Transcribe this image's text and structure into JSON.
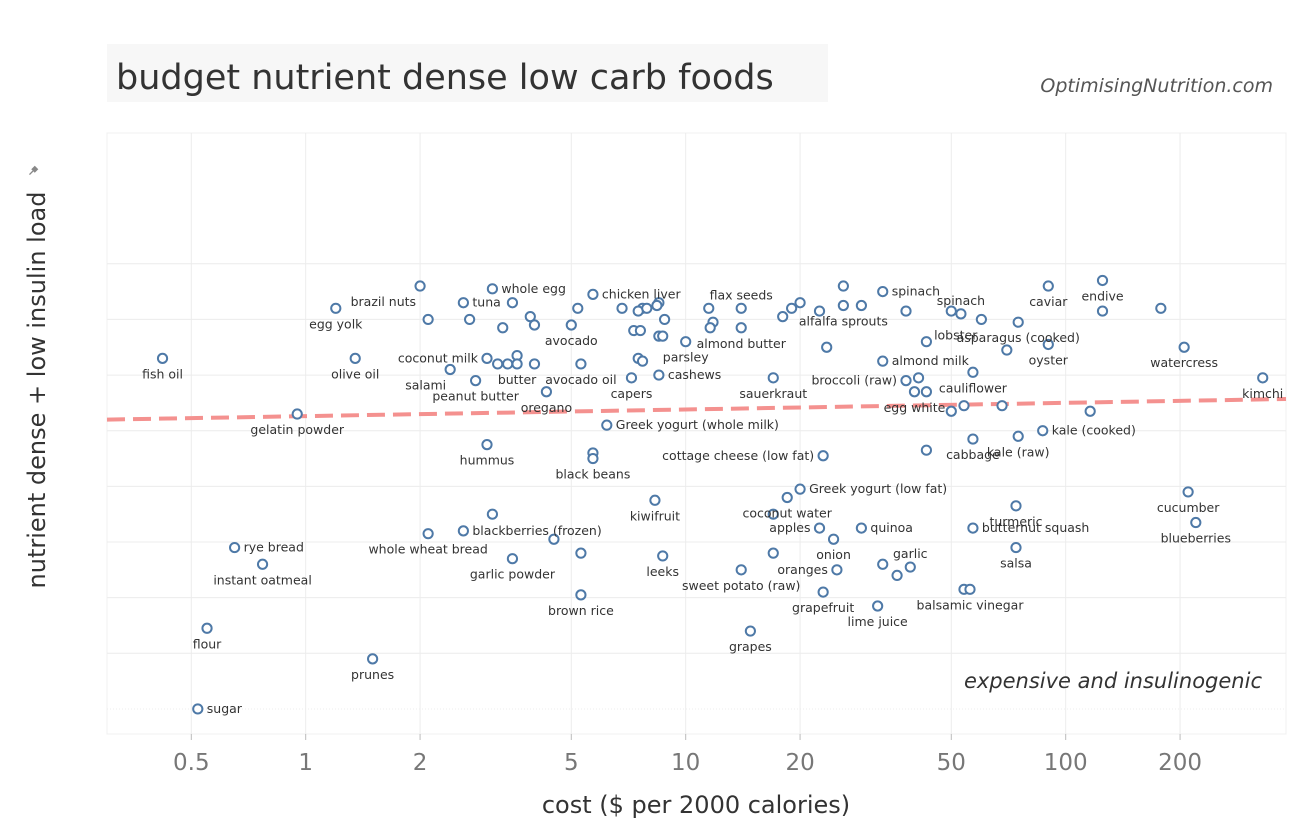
{
  "chart_data": {
    "type": "scatter",
    "title": "budget nutrient dense low carb foods",
    "watermark": "OptimisingNutrition.com",
    "corner_note": "expensive and insulinogenic",
    "xlabel": "cost ($ per 2000 calories)",
    "ylabel": "nutrient dense + low insulin load",
    "x_scale": "log",
    "xlim": [
      0.3,
      380
    ],
    "ylim": [
      -0.45,
      10.35
    ],
    "x_ticks": [
      {
        "value": 0.5,
        "label": "0.5"
      },
      {
        "value": 1,
        "label": "1"
      },
      {
        "value": 2,
        "label": "2"
      },
      {
        "value": 5,
        "label": "5"
      },
      {
        "value": 10,
        "label": "10"
      },
      {
        "value": 20,
        "label": "20"
      },
      {
        "value": 50,
        "label": "50"
      },
      {
        "value": 100,
        "label": "100"
      },
      {
        "value": 200,
        "label": "200"
      }
    ],
    "trendline": {
      "x": [
        0.3,
        380
      ],
      "y": [
        5.2,
        5.57
      ]
    },
    "labeled_points": [
      {
        "label": "fish oil",
        "x": 0.42,
        "y": 6.3,
        "pos": "below"
      },
      {
        "label": "egg yolk",
        "x": 1.2,
        "y": 7.2,
        "pos": "below"
      },
      {
        "label": "olive oil",
        "x": 1.35,
        "y": 6.3,
        "pos": "below"
      },
      {
        "label": "brazil nuts",
        "x": 2.0,
        "y": 7.6,
        "pos": "belowleft"
      },
      {
        "label": "coconut milk",
        "x": 3.0,
        "y": 6.3,
        "pos": "left"
      },
      {
        "label": "salami",
        "x": 2.4,
        "y": 6.1,
        "pos": "belowleft"
      },
      {
        "label": "peanut butter",
        "x": 2.8,
        "y": 5.9,
        "pos": "below"
      },
      {
        "label": "butter",
        "x": 3.6,
        "y": 6.2,
        "pos": "below"
      },
      {
        "label": "tuna",
        "x": 2.6,
        "y": 7.3,
        "pos": "right"
      },
      {
        "label": "whole egg",
        "x": 3.1,
        "y": 7.55,
        "pos": "right"
      },
      {
        "label": "avocado",
        "x": 5.0,
        "y": 6.9,
        "pos": "below"
      },
      {
        "label": "avocado oil",
        "x": 5.3,
        "y": 6.2,
        "pos": "below"
      },
      {
        "label": "oregano",
        "x": 4.3,
        "y": 5.7,
        "pos": "below"
      },
      {
        "label": "chicken liver",
        "x": 5.7,
        "y": 7.45,
        "pos": "right"
      },
      {
        "label": "capers",
        "x": 7.2,
        "y": 5.95,
        "pos": "below"
      },
      {
        "label": "cashews",
        "x": 8.5,
        "y": 6.0,
        "pos": "right"
      },
      {
        "label": "parsley",
        "x": 10.0,
        "y": 6.6,
        "pos": "below"
      },
      {
        "label": "flax seeds",
        "x": 14.0,
        "y": 7.2,
        "pos": "above"
      },
      {
        "label": "almond butter",
        "x": 14.0,
        "y": 6.85,
        "pos": "below"
      },
      {
        "label": "sauerkraut",
        "x": 17.0,
        "y": 5.95,
        "pos": "below"
      },
      {
        "label": "spinach",
        "x": 33.0,
        "y": 7.5,
        "pos": "right"
      },
      {
        "label": "alfalfa sprouts",
        "x": 26.0,
        "y": 7.25,
        "pos": "below"
      },
      {
        "label": "spinach",
        "x": 53.0,
        "y": 7.1,
        "pos": "above"
      },
      {
        "label": "almond milk",
        "x": 33.0,
        "y": 6.25,
        "pos": "right"
      },
      {
        "label": "broccoli (raw)",
        "x": 38.0,
        "y": 5.9,
        "pos": "left"
      },
      {
        "label": "cauliflower",
        "x": 57.0,
        "y": 6.05,
        "pos": "below"
      },
      {
        "label": "egg white",
        "x": 40.0,
        "y": 5.7,
        "pos": "below"
      },
      {
        "label": "lobster",
        "x": 60.0,
        "y": 7.0,
        "pos": "belowleft"
      },
      {
        "label": "caviar",
        "x": 90.0,
        "y": 7.6,
        "pos": "below"
      },
      {
        "label": "endive",
        "x": 125.0,
        "y": 7.7,
        "pos": "below"
      },
      {
        "label": "asparagus (cooked)",
        "x": 75.0,
        "y": 6.95,
        "pos": "below"
      },
      {
        "label": "oyster",
        "x": 90.0,
        "y": 6.55,
        "pos": "below"
      },
      {
        "label": "watercress",
        "x": 205.0,
        "y": 6.5,
        "pos": "below"
      },
      {
        "label": "kimchi",
        "x": 330.0,
        "y": 5.95,
        "pos": "below"
      },
      {
        "label": "gelatin powder",
        "x": 0.95,
        "y": 5.3,
        "pos": "below"
      },
      {
        "label": "Greek yogurt (whole milk)",
        "x": 6.2,
        "y": 5.1,
        "pos": "right"
      },
      {
        "label": "hummus",
        "x": 3.0,
        "y": 4.75,
        "pos": "below"
      },
      {
        "label": "cottage cheese (low fat)",
        "x": 23.0,
        "y": 4.55,
        "pos": "left"
      },
      {
        "label": "cabbage",
        "x": 57.0,
        "y": 4.85,
        "pos": "below"
      },
      {
        "label": "kale (cooked)",
        "x": 87.0,
        "y": 5.0,
        "pos": "right"
      },
      {
        "label": "kale (raw)",
        "x": 75.0,
        "y": 4.9,
        "pos": "below"
      },
      {
        "label": "black beans",
        "x": 5.7,
        "y": 4.5,
        "pos": "below"
      },
      {
        "label": "Greek yogurt (low fat)",
        "x": 20.0,
        "y": 3.95,
        "pos": "right"
      },
      {
        "label": "kiwifruit",
        "x": 8.3,
        "y": 3.75,
        "pos": "below"
      },
      {
        "label": "coconut water",
        "x": 18.5,
        "y": 3.8,
        "pos": "below"
      },
      {
        "label": "turmeric",
        "x": 74.0,
        "y": 3.65,
        "pos": "below"
      },
      {
        "label": "cucumber",
        "x": 210.0,
        "y": 3.9,
        "pos": "below"
      },
      {
        "label": "blackberries (frozen)",
        "x": 2.6,
        "y": 3.2,
        "pos": "right"
      },
      {
        "label": "whole wheat bread",
        "x": 2.1,
        "y": 3.15,
        "pos": "below"
      },
      {
        "label": "apples",
        "x": 22.5,
        "y": 3.25,
        "pos": "left"
      },
      {
        "label": "quinoa",
        "x": 29.0,
        "y": 3.25,
        "pos": "right"
      },
      {
        "label": "butternut squash",
        "x": 57.0,
        "y": 3.25,
        "pos": "right"
      },
      {
        "label": "blueberries",
        "x": 220.0,
        "y": 3.35,
        "pos": "below"
      },
      {
        "label": "rye bread",
        "x": 0.65,
        "y": 2.9,
        "pos": "right"
      },
      {
        "label": "onion",
        "x": 24.5,
        "y": 3.05,
        "pos": "below"
      },
      {
        "label": "salsa",
        "x": 74.0,
        "y": 2.9,
        "pos": "below"
      },
      {
        "label": "garlic powder",
        "x": 3.5,
        "y": 2.7,
        "pos": "below"
      },
      {
        "label": "leeks",
        "x": 8.7,
        "y": 2.75,
        "pos": "below"
      },
      {
        "label": "garlic",
        "x": 39.0,
        "y": 2.55,
        "pos": "above"
      },
      {
        "label": "instant oatmeal",
        "x": 0.77,
        "y": 2.6,
        "pos": "below"
      },
      {
        "label": "oranges",
        "x": 25.0,
        "y": 2.5,
        "pos": "left"
      },
      {
        "label": "sweet potato (raw)",
        "x": 14.0,
        "y": 2.5,
        "pos": "below"
      },
      {
        "label": "grapefruit",
        "x": 23.0,
        "y": 2.1,
        "pos": "below"
      },
      {
        "label": "balsamic vinegar",
        "x": 56.0,
        "y": 2.15,
        "pos": "below"
      },
      {
        "label": "lime juice",
        "x": 32.0,
        "y": 1.85,
        "pos": "below"
      },
      {
        "label": "brown rice",
        "x": 5.3,
        "y": 2.05,
        "pos": "below"
      },
      {
        "label": "flour",
        "x": 0.55,
        "y": 1.45,
        "pos": "below"
      },
      {
        "label": "grapes",
        "x": 14.8,
        "y": 1.4,
        "pos": "below"
      },
      {
        "label": "prunes",
        "x": 1.5,
        "y": 0.9,
        "pos": "below"
      },
      {
        "label": "sugar",
        "x": 0.52,
        "y": 0.0,
        "pos": "right"
      }
    ],
    "unlabeled_points": [
      {
        "x": 3.5,
        "y": 7.3
      },
      {
        "x": 2.1,
        "y": 7.0
      },
      {
        "x": 2.7,
        "y": 7.0
      },
      {
        "x": 3.3,
        "y": 6.85
      },
      {
        "x": 3.9,
        "y": 7.05
      },
      {
        "x": 4.0,
        "y": 6.9
      },
      {
        "x": 5.2,
        "y": 7.2
      },
      {
        "x": 6.8,
        "y": 7.2
      },
      {
        "x": 7.7,
        "y": 7.2
      },
      {
        "x": 8.5,
        "y": 7.3
      },
      {
        "x": 8.4,
        "y": 7.25
      },
      {
        "x": 7.5,
        "y": 7.15
      },
      {
        "x": 8.8,
        "y": 7.0
      },
      {
        "x": 7.3,
        "y": 6.8
      },
      {
        "x": 7.6,
        "y": 6.8
      },
      {
        "x": 7.9,
        "y": 7.2
      },
      {
        "x": 8.5,
        "y": 6.7
      },
      {
        "x": 8.7,
        "y": 6.7
      },
      {
        "x": 11.5,
        "y": 7.2
      },
      {
        "x": 11.8,
        "y": 6.95
      },
      {
        "x": 11.6,
        "y": 6.85
      },
      {
        "x": 3.2,
        "y": 6.2
      },
      {
        "x": 3.6,
        "y": 6.35
      },
      {
        "x": 4.0,
        "y": 6.2
      },
      {
        "x": 3.4,
        "y": 6.2
      },
      {
        "x": 7.5,
        "y": 6.3
      },
      {
        "x": 7.7,
        "y": 6.25
      },
      {
        "x": 18.0,
        "y": 7.05
      },
      {
        "x": 19.0,
        "y": 7.2
      },
      {
        "x": 20.0,
        "y": 7.3
      },
      {
        "x": 22.5,
        "y": 7.15
      },
      {
        "x": 26.0,
        "y": 7.6
      },
      {
        "x": 29.0,
        "y": 7.25
      },
      {
        "x": 38.0,
        "y": 7.15
      },
      {
        "x": 50.0,
        "y": 7.15
      },
      {
        "x": 23.5,
        "y": 6.5
      },
      {
        "x": 43.0,
        "y": 6.6
      },
      {
        "x": 41.0,
        "y": 5.95
      },
      {
        "x": 43.0,
        "y": 5.7
      },
      {
        "x": 54.0,
        "y": 5.45
      },
      {
        "x": 50.0,
        "y": 5.35
      },
      {
        "x": 68.0,
        "y": 5.45
      },
      {
        "x": 70.0,
        "y": 6.45
      },
      {
        "x": 125.0,
        "y": 7.15
      },
      {
        "x": 178.0,
        "y": 7.2
      },
      {
        "x": 116.0,
        "y": 5.35
      },
      {
        "x": 43.0,
        "y": 4.65
      },
      {
        "x": 5.7,
        "y": 4.6
      },
      {
        "x": 3.1,
        "y": 3.5
      },
      {
        "x": 4.5,
        "y": 3.05
      },
      {
        "x": 5.3,
        "y": 2.8
      },
      {
        "x": 17.0,
        "y": 3.5
      },
      {
        "x": 17.0,
        "y": 2.8
      },
      {
        "x": 33.0,
        "y": 2.6
      },
      {
        "x": 36.0,
        "y": 2.4
      },
      {
        "x": 54.0,
        "y": 2.15
      }
    ]
  }
}
